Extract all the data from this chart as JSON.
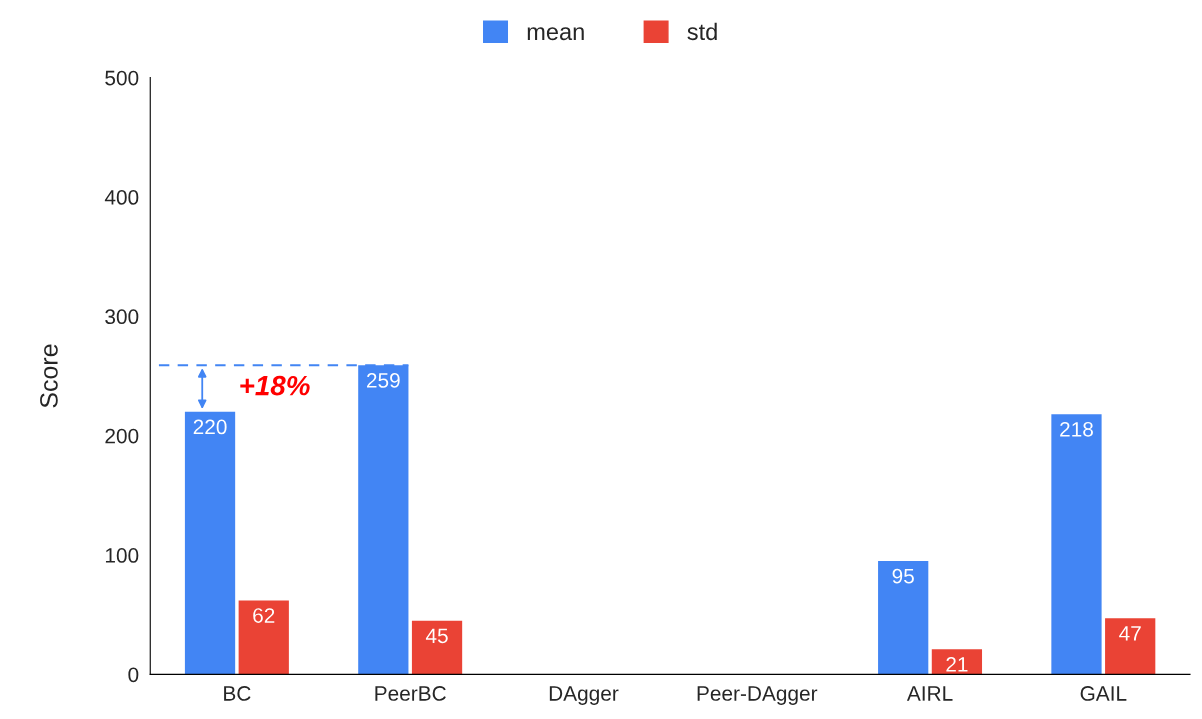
{
  "chart_data": {
    "type": "bar",
    "ylabel": "Score",
    "categories": [
      "BC",
      "PeerBC",
      "DAgger",
      "Peer-DAgger",
      "AIRL",
      "GAIL"
    ],
    "series": [
      {
        "name": "mean",
        "color": "#4285f4",
        "values": [
          220,
          259,
          0,
          0,
          95,
          218
        ],
        "value_labels": [
          "220",
          "259",
          null,
          null,
          "95",
          "218"
        ]
      },
      {
        "name": "std",
        "color": "#ea4335",
        "values": [
          62,
          45,
          0,
          0,
          21,
          47
        ],
        "value_labels": [
          "62",
          "45",
          null,
          null,
          "21",
          "47"
        ]
      }
    ],
    "ylim": [
      0,
      500
    ],
    "yticks": [
      0,
      100,
      200,
      300,
      400,
      500
    ],
    "grid": false,
    "legend": "top",
    "ref_lines": [
      {
        "axis": "y",
        "value": 259,
        "color": "#4285f4",
        "line_style": "dashed"
      }
    ],
    "annotations": [
      "+18%"
    ]
  }
}
